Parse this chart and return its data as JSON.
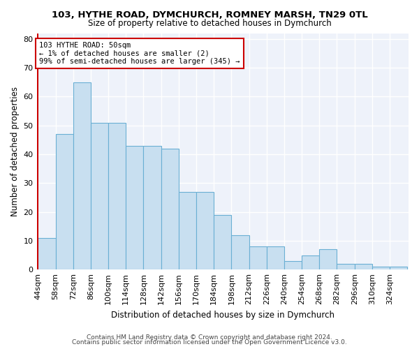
{
  "title": "103, HYTHE ROAD, DYMCHURCH, ROMNEY MARSH, TN29 0TL",
  "subtitle": "Size of property relative to detached houses in Dymchurch",
  "xlabel": "Distribution of detached houses by size in Dymchurch",
  "ylabel": "Number of detached properties",
  "bar_values": [
    11,
    47,
    65,
    51,
    51,
    43,
    43,
    42,
    27,
    27,
    19,
    12,
    8,
    8,
    3,
    5,
    7,
    2,
    2,
    1,
    1
  ],
  "bin_labels": [
    "44sqm",
    "58sqm",
    "72sqm",
    "86sqm",
    "100sqm",
    "114sqm",
    "128sqm",
    "142sqm",
    "156sqm",
    "170sqm",
    "184sqm",
    "198sqm",
    "212sqm",
    "226sqm",
    "240sqm",
    "254sqm",
    "268sqm",
    "282sqm",
    "296sqm",
    "310sqm",
    "324sqm"
  ],
  "bar_color": "#c8dff0",
  "bar_edge_color": "#6aafd4",
  "highlight_color": "#cc0000",
  "annotation_text": "103 HYTHE ROAD: 50sqm\n← 1% of detached houses are smaller (2)\n99% of semi-detached houses are larger (345) →",
  "annotation_box_color": "#ffffff",
  "annotation_box_edge": "#cc0000",
  "ylim": [
    0,
    82
  ],
  "yticks": [
    0,
    10,
    20,
    30,
    40,
    50,
    60,
    70,
    80
  ],
  "footer1": "Contains HM Land Registry data © Crown copyright and database right 2024.",
  "footer2": "Contains public sector information licensed under the Open Government Licence v3.0.",
  "background_color": "#ffffff",
  "plot_background": "#eef2fa",
  "bin_edges": [
    44,
    58,
    72,
    86,
    100,
    114,
    128,
    142,
    156,
    170,
    184,
    198,
    212,
    226,
    240,
    254,
    268,
    282,
    296,
    310,
    324,
    338
  ]
}
